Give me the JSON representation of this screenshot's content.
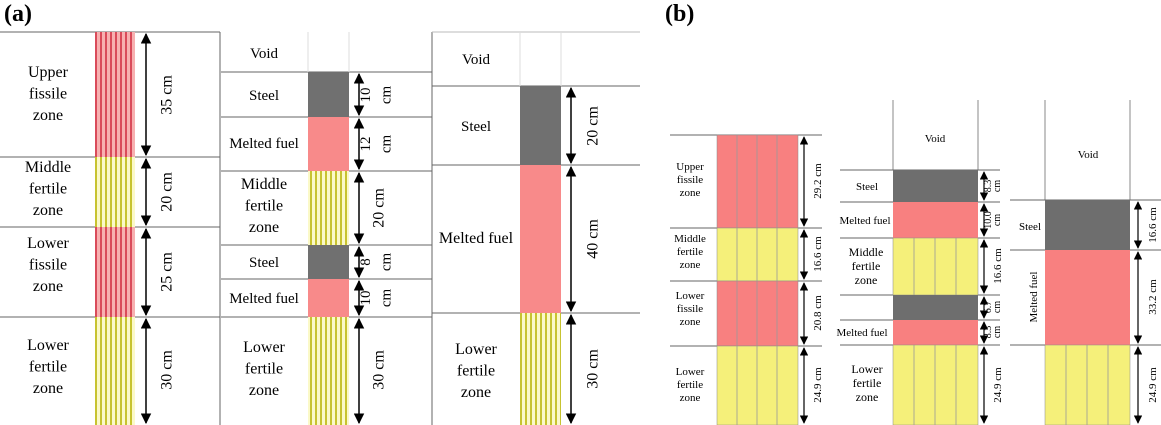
{
  "panel_a": {
    "label": "(a)",
    "col1": {
      "zones": [
        "Upper\nfissile\nzone",
        "Middle\nfertile\nzone",
        "Lower\nfissile\nzone",
        "Lower\nfertile\nzone"
      ],
      "dims": [
        "35 cm",
        "20 cm",
        "25 cm",
        "30 cm"
      ]
    },
    "col2": {
      "zones": [
        "Void",
        "Steel",
        "Melted fuel",
        "Middle\nfertile\nzone",
        "Steel",
        "Melted fuel",
        "Lower\nfertile\nzone"
      ],
      "dims": [
        "10\ncm",
        "12\ncm",
        "20 cm",
        "8\ncm",
        "10\ncm",
        "30 cm"
      ]
    },
    "col3": {
      "zones": [
        "Void",
        "Steel",
        "Melted fuel",
        "Lower\nfertile\nzone"
      ],
      "dims": [
        "20 cm",
        "40 cm",
        "30 cm"
      ]
    }
  },
  "panel_b": {
    "label": "(b)",
    "col1": {
      "zones": [
        "Upper\nfissile\nzone",
        "Middle\nfertile\nzone",
        "Lower\nfissile\nzone",
        "Lower\nfertile\nzone"
      ],
      "dims": [
        "29.2 cm",
        "16.6 cm",
        "20.8 cm",
        "24.9 cm"
      ]
    },
    "col2": {
      "zones": [
        "Void",
        "Steel",
        "Melted fuel",
        "Middle\nfertile\nzone",
        "Melted fuel",
        "Lower\nfertile\nzone"
      ],
      "dims": [
        "8.3\ncm",
        "10.0\ncm",
        "16.6 cm",
        "6.7\ncm",
        "8.3\ncm",
        "24.9 cm"
      ]
    },
    "col3": {
      "zones": [
        "Void",
        "Steel",
        "Melted fuel"
      ],
      "dims": [
        "16.6 cm",
        "33.2 cm",
        "24.9 cm"
      ]
    }
  },
  "colors": {
    "fissile": "#f08080",
    "fertile": "#f5f27a",
    "steel": "#777777",
    "melted_fuel": "#f88a8a"
  }
}
